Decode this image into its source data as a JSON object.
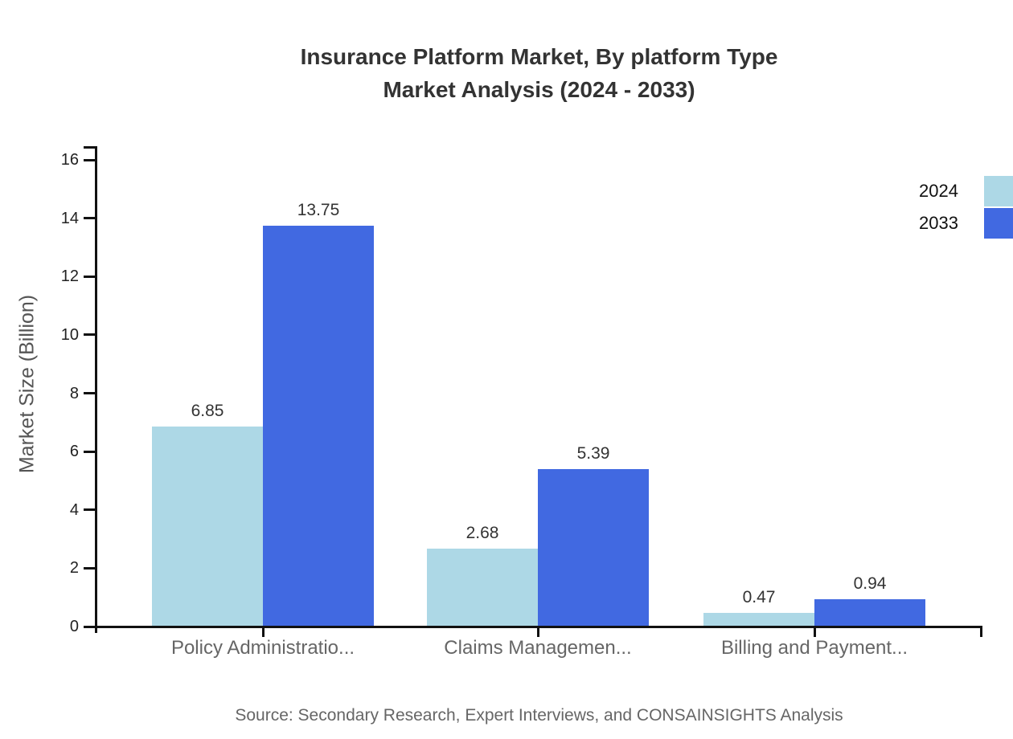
{
  "title": {
    "line1": "Insurance Platform Market, By platform Type",
    "line2": "Market Analysis (2024 - 2033)"
  },
  "source": "Source: Secondary Research, Expert Interviews, and CONSAINSIGHTS Analysis",
  "legend": {
    "items": [
      "2024",
      "2033"
    ]
  },
  "chart_data": {
    "type": "bar",
    "title": "Insurance Platform Market, By platform Type Market Analysis (2024 - 2033)",
    "categories": [
      "Policy Administratio...",
      "Claims Managemen...",
      "Billing and Payment..."
    ],
    "series": [
      {
        "name": "2024",
        "color": "#ADD8E6",
        "values": [
          6.85,
          2.68,
          0.47
        ]
      },
      {
        "name": "2033",
        "color": "#4169E1",
        "values": [
          13.75,
          5.39,
          0.94
        ]
      }
    ],
    "xlabel": "",
    "ylabel": "Market Size (Billion)",
    "ylim": [
      0,
      16
    ],
    "yticks": [
      0,
      2,
      4,
      6,
      8,
      10,
      12,
      14,
      16
    ],
    "grid": false,
    "legend_position": "top-right",
    "value_labels": true
  }
}
